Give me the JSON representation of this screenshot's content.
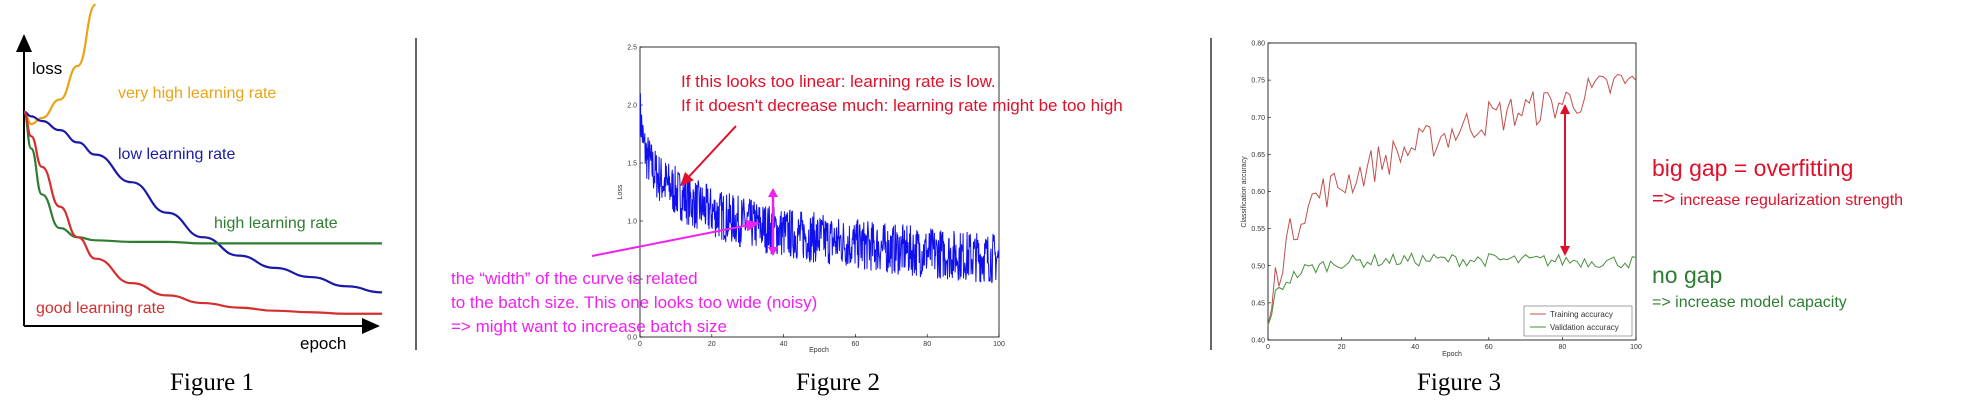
{
  "captions": [
    "Figure 1",
    "Figure 2",
    "Figure 3"
  ],
  "chart_data": [
    {
      "type": "line",
      "title": "",
      "xlabel": "epoch",
      "ylabel": "loss",
      "x": [
        0,
        0.02,
        0.05,
        0.1,
        0.15,
        0.2,
        0.3,
        0.4,
        0.5,
        0.6,
        0.7,
        0.8,
        0.9,
        1.0
      ],
      "ylim": [
        0,
        1
      ],
      "series": [
        {
          "name": "very high learning rate",
          "color": "#e8a317",
          "values": [
            0.7,
            0.66,
            0.68,
            0.74,
            0.85,
            1.05,
            null,
            null,
            null,
            null,
            null,
            null,
            null,
            null
          ]
        },
        {
          "name": "low learning rate",
          "color": "#1a1aa8",
          "values": [
            0.7,
            0.685,
            0.67,
            0.64,
            0.6,
            0.56,
            0.47,
            0.37,
            0.29,
            0.23,
            0.19,
            0.16,
            0.13,
            0.11
          ]
        },
        {
          "name": "high learning rate",
          "color": "#2e7d32",
          "values": [
            0.7,
            0.58,
            0.43,
            0.32,
            0.29,
            0.28,
            0.275,
            0.275,
            0.27,
            0.27,
            0.27,
            0.27,
            0.27,
            0.27
          ]
        },
        {
          "name": "good learning rate",
          "color": "#d32f2f",
          "values": [
            0.7,
            0.62,
            0.52,
            0.39,
            0.29,
            0.22,
            0.14,
            0.1,
            0.075,
            0.06,
            0.05,
            0.045,
            0.04,
            0.04
          ]
        }
      ]
    },
    {
      "type": "line",
      "title": "",
      "xlabel": "Epoch",
      "ylabel": "Loss",
      "xlim": [
        0,
        100
      ],
      "ylim": [
        0,
        2.5
      ],
      "x_ticks": [
        "0",
        "20",
        "40",
        "60",
        "80",
        "100"
      ],
      "y_ticks": [
        "0.0",
        "0.5",
        "1.0",
        "1.5",
        "2.0",
        "2.5"
      ],
      "series": [
        {
          "name": "",
          "color": "#1010ee",
          "x": [
            0,
            1,
            2,
            4,
            6,
            8,
            10,
            15,
            20,
            25,
            30,
            40,
            50,
            60,
            70,
            80,
            90,
            100
          ],
          "values": [
            1.95,
            1.65,
            1.55,
            1.42,
            1.35,
            1.3,
            1.25,
            1.15,
            1.08,
            1.02,
            0.98,
            0.9,
            0.85,
            0.8,
            0.76,
            0.73,
            0.7,
            0.68
          ],
          "noise_band": 0.22
        }
      ],
      "annotations": [
        {
          "text": [
            "If this looks too linear: learning rate is low.",
            "If it doesn't decrease much: learning rate might be too high"
          ],
          "color": "#e0102b"
        },
        {
          "text": [
            "the “width” of the curve is related",
            "to the batch size. This one looks too wide (noisy)",
            "=> might want to increase batch size"
          ],
          "color": "#ee22ee"
        }
      ]
    },
    {
      "type": "line",
      "title": "",
      "xlabel": "Epoch",
      "ylabel": "Classification accuracy",
      "xlim": [
        0,
        100
      ],
      "ylim": [
        0.4,
        0.8
      ],
      "x_ticks": [
        "0",
        "20",
        "40",
        "60",
        "80",
        "100"
      ],
      "y_ticks": [
        "0.40",
        "0.45",
        "0.50",
        "0.55",
        "0.60",
        "0.65",
        "0.70",
        "0.75",
        "0.80"
      ],
      "legend_position": "bottom-right",
      "series": [
        {
          "name": "Training accuracy",
          "color": "#c0504d",
          "x": [
            0,
            2,
            5,
            10,
            15,
            20,
            30,
            40,
            50,
            60,
            70,
            80,
            90,
            95,
            100
          ],
          "values": [
            0.42,
            0.48,
            0.53,
            0.58,
            0.6,
            0.61,
            0.64,
            0.66,
            0.68,
            0.7,
            0.71,
            0.72,
            0.735,
            0.745,
            0.745
          ]
        },
        {
          "name": "Validation accuracy",
          "color": "#4a8f3c",
          "x": [
            0,
            2,
            5,
            10,
            15,
            20,
            30,
            40,
            50,
            60,
            70,
            80,
            90,
            100
          ],
          "values": [
            0.42,
            0.46,
            0.48,
            0.495,
            0.5,
            0.505,
            0.507,
            0.508,
            0.508,
            0.508,
            0.507,
            0.507,
            0.506,
            0.505
          ]
        }
      ],
      "annotations": [
        {
          "text": "big gap = overfitting",
          "color": "#e0102b"
        },
        {
          "text": "=> increase regularization strength",
          "color": "#e0102b"
        },
        {
          "text": "no gap",
          "color": "#2e7d32"
        },
        {
          "text": "=> increase model capacity",
          "color": "#2e7d32"
        }
      ]
    }
  ]
}
